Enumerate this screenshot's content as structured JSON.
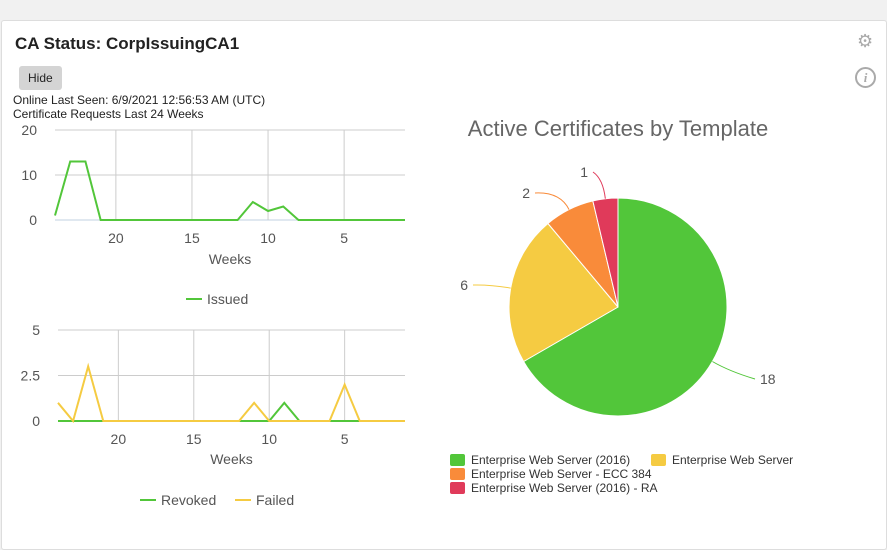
{
  "header": {
    "title": "CA Status: CorpIssuingCA1",
    "hide_label": "Hide",
    "online_last_seen": "Online Last Seen: 6/9/2021 12:56:53 AM (UTC)",
    "requests_caption": "Certificate Requests Last 24 Weeks",
    "icons": [
      "gear-icon",
      "info-icon"
    ]
  },
  "chart_data": [
    {
      "type": "line",
      "xlabel": "Weeks",
      "x": [
        24,
        23,
        22,
        21,
        20,
        19,
        18,
        17,
        16,
        15,
        14,
        13,
        12,
        11,
        10,
        9,
        8,
        7,
        6,
        5,
        4,
        3,
        2,
        1
      ],
      "xticks": [
        20,
        15,
        10,
        5
      ],
      "yticks": [
        0,
        10,
        20
      ],
      "ylim": [
        0,
        20
      ],
      "xlim": [
        24,
        1
      ],
      "grid": true,
      "legend": "bottom",
      "series": [
        {
          "name": "Issued",
          "color": "#52c63a",
          "values": [
            1,
            13,
            13,
            0,
            0,
            0,
            0,
            0,
            0,
            0,
            0,
            0,
            0,
            4,
            2,
            3,
            0,
            0,
            0,
            0,
            0,
            0,
            0,
            0
          ]
        }
      ]
    },
    {
      "type": "line",
      "xlabel": "Weeks",
      "x": [
        24,
        23,
        22,
        21,
        20,
        19,
        18,
        17,
        16,
        15,
        14,
        13,
        12,
        11,
        10,
        9,
        8,
        7,
        6,
        5,
        4,
        3,
        2,
        1
      ],
      "xticks": [
        20,
        15,
        10,
        5
      ],
      "yticks": [
        0,
        2.5,
        5
      ],
      "ylim": [
        0,
        5
      ],
      "xlim": [
        24,
        1
      ],
      "grid": true,
      "legend": "bottom",
      "series": [
        {
          "name": "Revoked",
          "color": "#52c63a",
          "values": [
            0,
            0,
            0,
            0,
            0,
            0,
            0,
            0,
            0,
            0,
            0,
            0,
            0,
            0,
            0,
            1,
            0,
            0,
            0,
            0,
            0,
            0,
            0,
            0
          ]
        },
        {
          "name": "Failed",
          "color": "#f5cb42",
          "values": [
            1,
            0,
            3,
            0,
            0,
            0,
            0,
            0,
            0,
            0,
            0,
            0,
            0,
            1,
            0,
            0,
            0,
            0,
            0,
            2,
            0,
            0,
            0,
            0
          ]
        }
      ]
    },
    {
      "type": "pie",
      "title": "Active Certificates by Template",
      "legend": "bottom",
      "categories": [
        "Enterprise Web Server (2016)",
        "Enterprise Web Server",
        "Enterprise Web Server - ECC 384",
        "Enterprise Web Server (2016) - RA"
      ],
      "values": [
        18,
        6,
        2,
        1
      ],
      "colors": [
        "#52c63a",
        "#f5cb42",
        "#f98b3a",
        "#e03a5a"
      ]
    }
  ]
}
